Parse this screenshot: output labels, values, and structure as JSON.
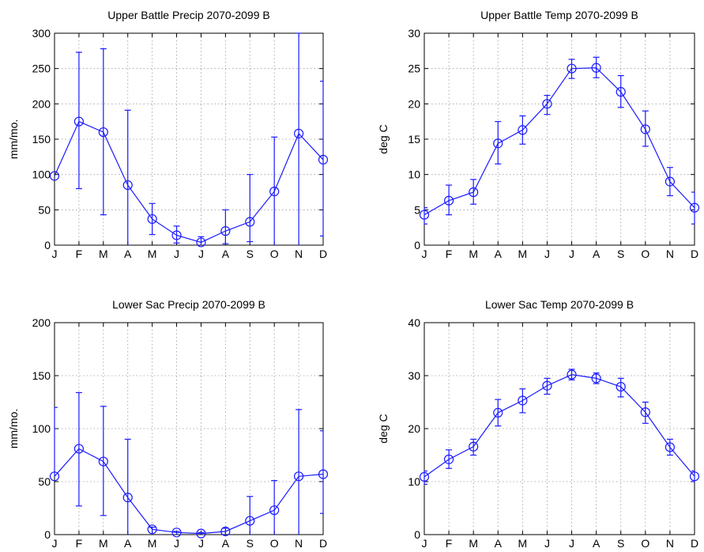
{
  "figure": {
    "line_color": "#1a1aff",
    "marker": "circle"
  },
  "chart_data": [
    {
      "type": "line",
      "title": "Upper Battle Precip 2070-2099 B",
      "xlabel": "",
      "ylabel": "mm/mo.",
      "categories": [
        "J",
        "F",
        "M",
        "A",
        "M",
        "J",
        "J",
        "A",
        "S",
        "O",
        "N",
        "D"
      ],
      "ylim": [
        0,
        300
      ],
      "yticks": [
        0,
        50,
        100,
        150,
        200,
        250,
        300
      ],
      "grid": true,
      "values": [
        98,
        175,
        160,
        85,
        37,
        14,
        4,
        20,
        33,
        76,
        158,
        121
      ],
      "error_low": [
        null,
        80,
        43,
        0,
        15,
        3,
        0,
        2,
        5,
        0,
        0,
        13
      ],
      "error_high": [
        null,
        273,
        278,
        191,
        59,
        27,
        12,
        50,
        100,
        153,
        300,
        232
      ]
    },
    {
      "type": "line",
      "title": "Upper Battle Temp 2070-2099 B",
      "xlabel": "",
      "ylabel": "deg C",
      "categories": [
        "J",
        "F",
        "M",
        "A",
        "M",
        "J",
        "J",
        "A",
        "S",
        "O",
        "N",
        "D"
      ],
      "ylim": [
        0,
        30
      ],
      "yticks": [
        0,
        5,
        10,
        15,
        20,
        25,
        30
      ],
      "grid": true,
      "values": [
        4.3,
        6.3,
        7.5,
        14.4,
        16.3,
        20.0,
        25.0,
        25.1,
        21.7,
        16.4,
        9.0,
        5.3
      ],
      "error_low": [
        3.0,
        4.3,
        5.8,
        11.5,
        14.3,
        18.5,
        23.6,
        23.7,
        19.5,
        14.0,
        7.0,
        3.0
      ],
      "error_high": [
        5.3,
        8.5,
        9.3,
        17.5,
        18.3,
        21.2,
        26.3,
        26.6,
        24.0,
        19.0,
        11.0,
        7.5
      ]
    },
    {
      "type": "line",
      "title": "Lower Sac Precip 2070-2099 B",
      "xlabel": "",
      "ylabel": "mm/mo.",
      "categories": [
        "J",
        "F",
        "M",
        "A",
        "M",
        "J",
        "J",
        "A",
        "S",
        "O",
        "N",
        "D"
      ],
      "ylim": [
        0,
        200
      ],
      "yticks": [
        0,
        50,
        100,
        150,
        200
      ],
      "grid": true,
      "values": [
        55,
        81,
        69,
        35,
        5,
        2,
        1,
        3,
        13,
        23,
        55,
        57
      ],
      "error_low": [
        null,
        27,
        18,
        0,
        0,
        0,
        0,
        0,
        0,
        0,
        0,
        20
      ],
      "error_high": [
        120,
        134,
        121,
        90,
        7,
        3,
        2,
        6,
        36,
        51,
        118,
        98
      ]
    },
    {
      "type": "line",
      "title": "Lower Sac Temp 2070-2099 B",
      "xlabel": "",
      "ylabel": "deg C",
      "categories": [
        "J",
        "F",
        "M",
        "A",
        "M",
        "J",
        "J",
        "A",
        "S",
        "O",
        "N",
        "D"
      ],
      "ylim": [
        0,
        40
      ],
      "yticks": [
        0,
        10,
        20,
        30,
        40
      ],
      "grid": true,
      "values": [
        10.9,
        14.2,
        16.6,
        23.0,
        25.3,
        28.1,
        30.2,
        29.5,
        27.9,
        23.1,
        16.5,
        11.0
      ],
      "error_low": [
        9.5,
        12.5,
        15.0,
        20.5,
        23.0,
        26.5,
        29.2,
        28.5,
        26.0,
        21.0,
        15.0,
        10.0
      ],
      "error_high": [
        12.0,
        16.0,
        18.0,
        25.5,
        27.5,
        29.5,
        31.2,
        30.5,
        29.5,
        25.0,
        18.0,
        12.0
      ]
    }
  ]
}
